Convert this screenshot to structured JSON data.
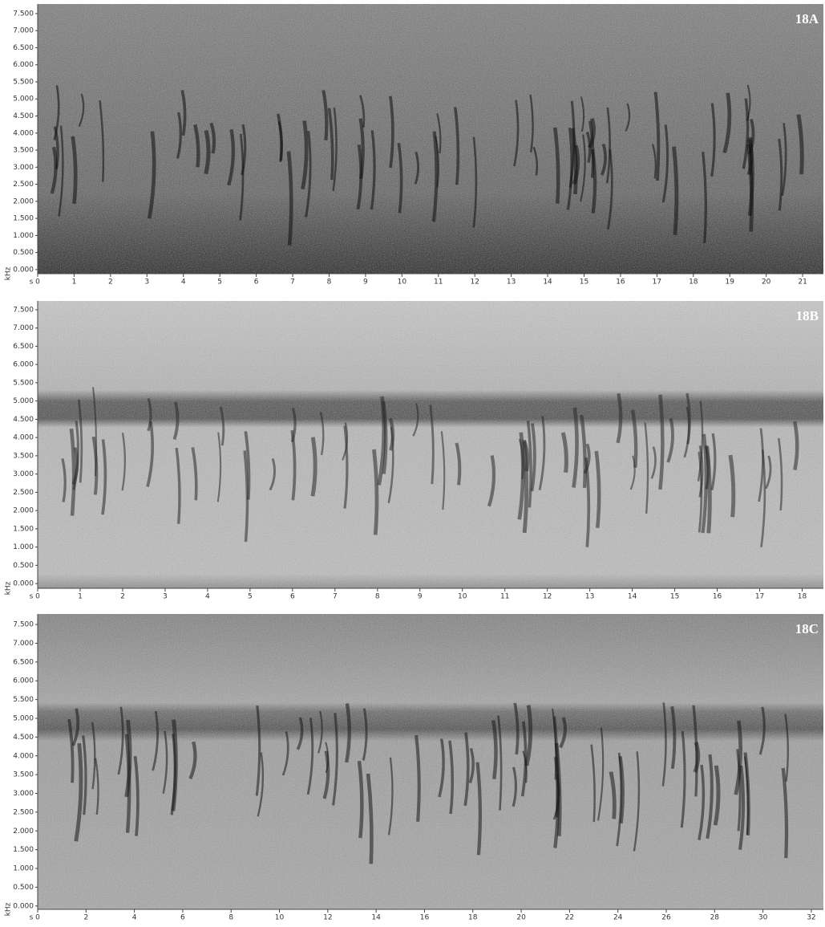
{
  "chart_data": [
    {
      "type": "spectrogram",
      "label": "18A",
      "x_label": "s",
      "y_label": "kHz",
      "xlim": [
        0,
        21.57
      ],
      "xticks": [
        0,
        1,
        2,
        3,
        4,
        5,
        6,
        7,
        8,
        9,
        10,
        11,
        12,
        13,
        14,
        15,
        16,
        17,
        18,
        19,
        20,
        21
      ],
      "ylim": [
        -0.12,
        7.78
      ],
      "yticks": [
        {
          "value": 0,
          "label": "0.000"
        },
        {
          "value": 0.5,
          "label": "0.500"
        },
        {
          "value": 1,
          "label": "1.000"
        },
        {
          "value": 1.5,
          "label": "1.500"
        },
        {
          "value": 2,
          "label": "2.000"
        },
        {
          "value": 2.5,
          "label": "2.500"
        },
        {
          "value": 3,
          "label": "3.000"
        },
        {
          "value": 3.5,
          "label": "3.500"
        },
        {
          "value": 4,
          "label": "4.000"
        },
        {
          "value": 4.5,
          "label": "4.500"
        },
        {
          "value": 5,
          "label": "5.000"
        },
        {
          "value": 5.5,
          "label": "5.500"
        },
        {
          "value": 6,
          "label": "6.000"
        },
        {
          "value": 6.5,
          "label": "6.500"
        },
        {
          "value": 7,
          "label": "7.000"
        },
        {
          "value": 7.5,
          "label": "7.500"
        }
      ]
    },
    {
      "type": "spectrogram",
      "label": "18B",
      "x_label": "s",
      "y_label": "kHz",
      "xlim": [
        0,
        18.5
      ],
      "xticks": [
        0,
        1,
        2,
        3,
        4,
        5,
        6,
        7,
        8,
        9,
        10,
        11,
        12,
        13,
        14,
        15,
        16,
        17,
        18
      ],
      "ylim": [
        -0.13,
        7.74
      ],
      "yticks": [
        {
          "value": 0,
          "label": "0.000"
        },
        {
          "value": 0.5,
          "label": "0.500"
        },
        {
          "value": 1,
          "label": "1.000"
        },
        {
          "value": 1.5,
          "label": "1.500"
        },
        {
          "value": 2,
          "label": "2.000"
        },
        {
          "value": 2.5,
          "label": "2.500"
        },
        {
          "value": 3,
          "label": "3.000"
        },
        {
          "value": 3.5,
          "label": "3.500"
        },
        {
          "value": 4,
          "label": "4.000"
        },
        {
          "value": 4.5,
          "label": "4.500"
        },
        {
          "value": 5,
          "label": "5.000"
        },
        {
          "value": 5.5,
          "label": "5.500"
        },
        {
          "value": 6,
          "label": "6.000"
        },
        {
          "value": 6.5,
          "label": "6.500"
        },
        {
          "value": 7,
          "label": "7.000"
        },
        {
          "value": 7.5,
          "label": "7.500"
        }
      ]
    },
    {
      "type": "spectrogram",
      "label": "18C",
      "x_label": "s",
      "y_label": "kHz",
      "xlim": [
        0,
        32.5
      ],
      "xticks": [
        0,
        2,
        4,
        6,
        8,
        10,
        12,
        14,
        16,
        18,
        20,
        22,
        24,
        26,
        28,
        30,
        32
      ],
      "ylim": [
        -0.09,
        7.78
      ],
      "yticks": [
        {
          "value": 0,
          "label": "0.000"
        },
        {
          "value": 0.5,
          "label": "0.500"
        },
        {
          "value": 1,
          "label": "1.000"
        },
        {
          "value": 1.5,
          "label": "1.500"
        },
        {
          "value": 2,
          "label": "2.000"
        },
        {
          "value": 2.5,
          "label": "2.500"
        },
        {
          "value": 3,
          "label": "3.000"
        },
        {
          "value": 3.5,
          "label": "3.500"
        },
        {
          "value": 4,
          "label": "4.000"
        },
        {
          "value": 4.5,
          "label": "4.500"
        },
        {
          "value": 5,
          "label": "5.000"
        },
        {
          "value": 5.5,
          "label": "5.500"
        },
        {
          "value": 6,
          "label": "6.000"
        },
        {
          "value": 6.5,
          "label": "6.500"
        },
        {
          "value": 7,
          "label": "7.000"
        },
        {
          "value": 7.5,
          "label": "7.500"
        }
      ]
    }
  ]
}
